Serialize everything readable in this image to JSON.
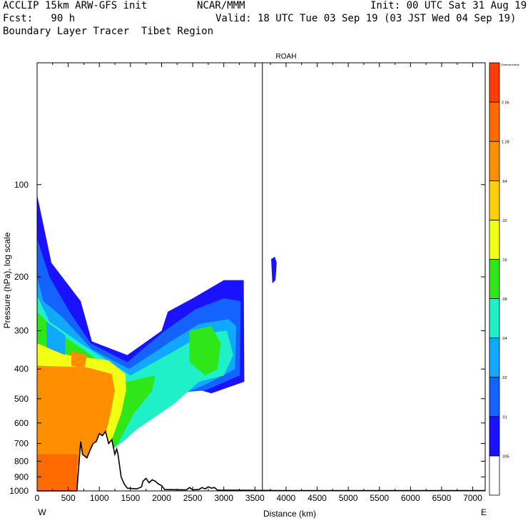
{
  "header": {
    "line1_left": "ACCLIP 15km ARW-GFS init",
    "line1_center": "NCAR/MMM",
    "line1_right": "Init: 00 UTC Sat 31 Aug 19",
    "line2_left": "Fcst:   90 h",
    "line2_right": "Valid: 18 UTC Tue 03 Sep 19 (03 JST Wed 04 Sep 19)",
    "line3_left": "Boundary Layer Tracer  Tibet Region"
  },
  "chart_data": {
    "type": "heatmap",
    "title": "ROAH",
    "xlabel": "Distance (km)",
    "ylabel": "Pressure (hPa), log scale",
    "x_ticks": [
      "0",
      "500",
      "1000",
      "1500",
      "2000",
      "2500",
      "3000",
      "3500",
      "4000",
      "4500",
      "5000",
      "5500",
      "6000",
      "6500",
      "7000"
    ],
    "y_ticks": [
      "100",
      "200",
      "300",
      "400",
      "500",
      "600",
      "700",
      "800",
      "900",
      "1000"
    ],
    "xlim": [
      0,
      7200
    ],
    "ylim": [
      1000,
      40
    ],
    "left_end_label": "W",
    "right_end_label": "E",
    "marker_line_km": 3620,
    "colorbar": {
      "title": "Dimensionless",
      "levels": [
        ".005",
        ".01",
        ".02",
        ".04",
        ".08",
        ".16",
        ".32",
        ".64",
        "1.28",
        "2.56"
      ],
      "colors": [
        "#ffffff",
        "#1a12ff",
        "#1463ff",
        "#11a8ff",
        "#1ff0c8",
        "#2ee618",
        "#f2ff13",
        "#ffd008",
        "#ff8e00",
        "#ff6a00",
        "#ff3d00"
      ]
    },
    "tracer_bands": [
      {
        "level": 1,
        "points": [
          [
            0,
            108
          ],
          [
            230,
            180
          ],
          [
            700,
            240
          ],
          [
            880,
            325
          ],
          [
            1450,
            360
          ],
          [
            2000,
            300
          ],
          [
            2100,
            260
          ],
          [
            2500,
            235
          ],
          [
            3000,
            205
          ],
          [
            3320,
            205
          ],
          [
            3330,
            440
          ],
          [
            2800,
            480
          ],
          [
            2400,
            455
          ],
          [
            2100,
            470
          ],
          [
            1700,
            570
          ],
          [
            1500,
            640
          ],
          [
            1300,
            680
          ],
          [
            800,
            760
          ],
          [
            400,
            800
          ],
          [
            0,
            700
          ]
        ]
      },
      {
        "level": 2,
        "points": [
          [
            0,
            150
          ],
          [
            200,
            200
          ],
          [
            520,
            260
          ],
          [
            860,
            330
          ],
          [
            1450,
            380
          ],
          [
            2050,
            300
          ],
          [
            2550,
            255
          ],
          [
            3000,
            235
          ],
          [
            3270,
            240
          ],
          [
            3260,
            420
          ],
          [
            2700,
            470
          ],
          [
            2100,
            480
          ],
          [
            1650,
            590
          ],
          [
            1450,
            660
          ],
          [
            800,
            780
          ],
          [
            0,
            720
          ]
        ]
      },
      {
        "level": 3,
        "points": [
          [
            0,
            200
          ],
          [
            100,
            240
          ],
          [
            400,
            270
          ],
          [
            880,
            345
          ],
          [
            1480,
            400
          ],
          [
            2100,
            330
          ],
          [
            2600,
            285
          ],
          [
            3080,
            275
          ],
          [
            3200,
            290
          ],
          [
            3180,
            400
          ],
          [
            2700,
            450
          ],
          [
            2150,
            500
          ],
          [
            1600,
            610
          ],
          [
            1420,
            680
          ],
          [
            900,
            790
          ],
          [
            0,
            740
          ]
        ]
      },
      {
        "level": 4,
        "points": [
          [
            0,
            230
          ],
          [
            200,
            280
          ],
          [
            700,
            330
          ],
          [
            1500,
            420
          ],
          [
            2200,
            350
          ],
          [
            2700,
            305
          ],
          [
            3050,
            300
          ],
          [
            3150,
            360
          ],
          [
            3000,
            420
          ],
          [
            2600,
            440
          ],
          [
            2200,
            520
          ],
          [
            1600,
            630
          ],
          [
            1380,
            690
          ],
          [
            950,
            800
          ],
          [
            0,
            760
          ]
        ]
      },
      {
        "level": 5,
        "points": [
          [
            0,
            260
          ],
          [
            300,
            300
          ],
          [
            780,
            350
          ],
          [
            1450,
            440
          ],
          [
            1900,
            420
          ],
          [
            1850,
            470
          ],
          [
            1550,
            560
          ],
          [
            1300,
            700
          ],
          [
            1000,
            810
          ],
          [
            0,
            780
          ]
        ]
      },
      {
        "level": 6,
        "points": [
          [
            0,
            330
          ],
          [
            500,
            360
          ],
          [
            1150,
            375
          ],
          [
            1420,
            415
          ],
          [
            1430,
            470
          ],
          [
            1350,
            560
          ],
          [
            1200,
            680
          ],
          [
            1000,
            820
          ],
          [
            0,
            800
          ]
        ]
      },
      {
        "level": 8,
        "points": [
          [
            0,
            390
          ],
          [
            800,
            395
          ],
          [
            1200,
            415
          ],
          [
            1250,
            470
          ],
          [
            1180,
            560
          ],
          [
            1100,
            650
          ],
          [
            950,
            820
          ],
          [
            500,
            830
          ],
          [
            300,
            800
          ],
          [
            0,
            780
          ]
        ]
      },
      {
        "level": 9,
        "points": [
          [
            0,
            760
          ],
          [
            650,
            760
          ],
          [
            650,
            1000
          ],
          [
            0,
            1000
          ]
        ]
      }
    ],
    "tracer_islands": [
      {
        "level": 1,
        "points": [
          [
            3760,
            175
          ],
          [
            3820,
            172
          ],
          [
            3850,
            180
          ],
          [
            3830,
            205
          ],
          [
            3780,
            210
          ]
        ]
      },
      {
        "level": 5,
        "points": [
          [
            2450,
            300
          ],
          [
            2800,
            290
          ],
          [
            2950,
            330
          ],
          [
            2900,
            400
          ],
          [
            2700,
            420
          ],
          [
            2450,
            380
          ]
        ]
      },
      {
        "level": 3,
        "points": [
          [
            150,
            280
          ],
          [
            450,
            310
          ],
          [
            450,
            360
          ],
          [
            150,
            340
          ]
        ]
      },
      {
        "level": 8,
        "points": [
          [
            550,
            350
          ],
          [
            800,
            360
          ],
          [
            760,
            400
          ],
          [
            550,
            390
          ]
        ]
      }
    ],
    "terrain_surface_hpa": [
      [
        0,
        1000
      ],
      [
        640,
        1000
      ],
      [
        680,
        780
      ],
      [
        700,
        690
      ],
      [
        730,
        760
      ],
      [
        800,
        780
      ],
      [
        860,
        730
      ],
      [
        900,
        700
      ],
      [
        950,
        690
      ],
      [
        1000,
        650
      ],
      [
        1050,
        660
      ],
      [
        1100,
        640
      ],
      [
        1150,
        700
      ],
      [
        1200,
        680
      ],
      [
        1250,
        760
      ],
      [
        1280,
        730
      ],
      [
        1300,
        760
      ],
      [
        1350,
        900
      ],
      [
        1400,
        950
      ],
      [
        1450,
        980
      ],
      [
        1600,
        985
      ],
      [
        1680,
        970
      ],
      [
        1700,
        930
      ],
      [
        1750,
        910
      ],
      [
        1800,
        940
      ],
      [
        1850,
        920
      ],
      [
        1900,
        930
      ],
      [
        1950,
        950
      ],
      [
        2000,
        960
      ],
      [
        2050,
        990
      ],
      [
        2400,
        992
      ],
      [
        2450,
        975
      ],
      [
        2500,
        992
      ],
      [
        2600,
        990
      ],
      [
        2650,
        975
      ],
      [
        2700,
        985
      ],
      [
        2750,
        970
      ],
      [
        2800,
        980
      ],
      [
        2850,
        975
      ],
      [
        2900,
        995
      ],
      [
        3200,
        995
      ],
      [
        4000,
        998
      ],
      [
        7200,
        998
      ]
    ]
  }
}
